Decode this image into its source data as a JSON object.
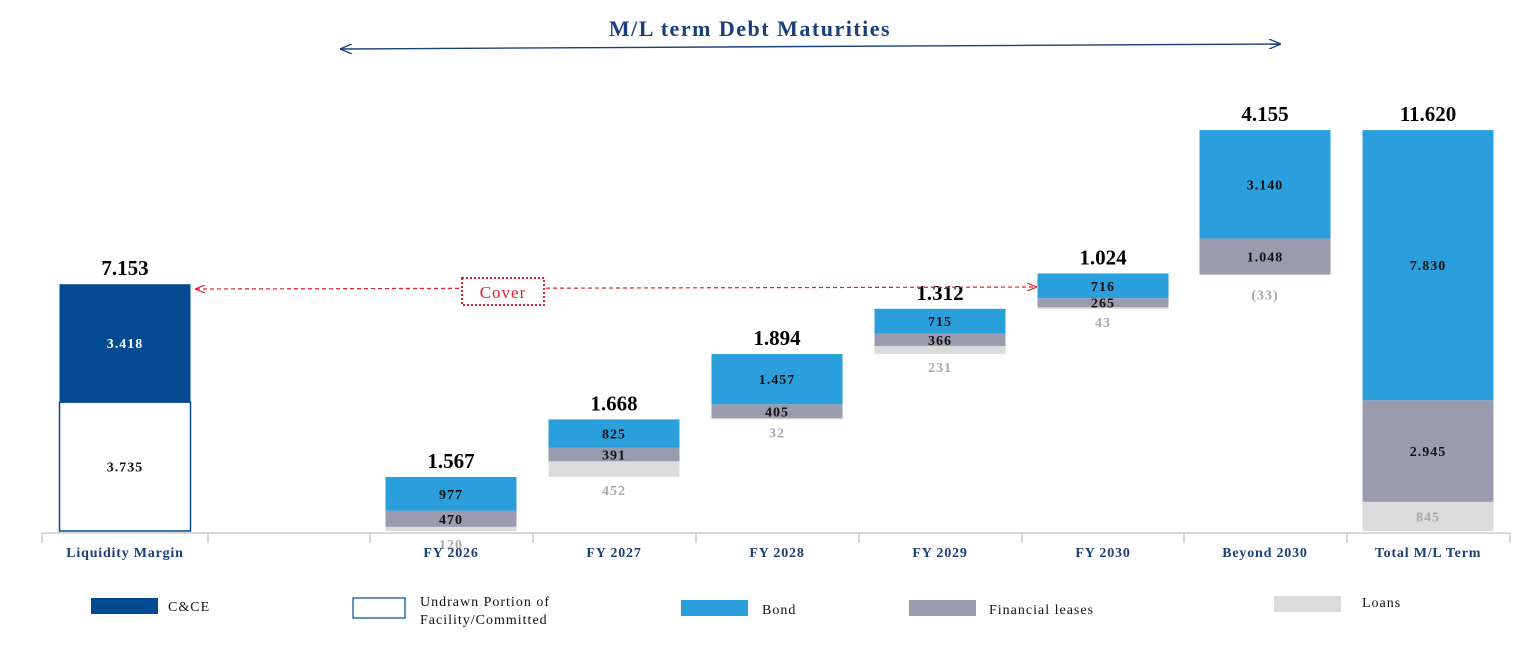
{
  "colors": {
    "cce": "#034a91",
    "bond": "#2a9fdb",
    "leases": "#9b9bb0",
    "loans": "#dcdcdc",
    "title": "#1a3f7a",
    "axis_label": "#1a3f7a",
    "cover": "#e0202d"
  },
  "header": {
    "title": "M/L term Debt Maturities"
  },
  "cover_label": "Cover",
  "chart_data": {
    "type": "waterfall-stacked-bar",
    "title": "M/L term Debt Maturities",
    "categories": [
      "Liquidity Margin",
      "FY 2026",
      "FY 2027",
      "FY 2028",
      "FY 2029",
      "FY 2030",
      "Beyond 2030",
      "Total M/L Term"
    ],
    "totals": [
      "7.153",
      "1.567",
      "1.668",
      "1.894",
      "1.312",
      "1.024",
      "4.155",
      "11.620"
    ],
    "series": [
      {
        "name": "C&CE",
        "color_key": "cce",
        "values": [
          3418,
          null,
          null,
          null,
          null,
          null,
          null,
          null
        ],
        "labels": [
          "3.418",
          "",
          "",
          "",
          "",
          "",
          "",
          ""
        ]
      },
      {
        "name": "Undrawn Portion of Facility/Committed",
        "color_key": "undrawn",
        "values": [
          3735,
          null,
          null,
          null,
          null,
          null,
          null,
          null
        ],
        "labels": [
          "3.735",
          "",
          "",
          "",
          "",
          "",
          "",
          ""
        ]
      },
      {
        "name": "Bond",
        "color_key": "bond",
        "values": [
          null,
          977,
          825,
          1457,
          715,
          716,
          3140,
          7830
        ],
        "labels": [
          "",
          "977",
          "825",
          "1.457",
          "715",
          "716",
          "3.140",
          "7.830"
        ]
      },
      {
        "name": "Financial leases",
        "color_key": "leases",
        "values": [
          null,
          470,
          391,
          405,
          366,
          265,
          1048,
          2945
        ],
        "labels": [
          "",
          "470",
          "391",
          "405",
          "366",
          "265",
          "1.048",
          "2.945"
        ]
      },
      {
        "name": "Loans",
        "color_key": "loans",
        "values": [
          null,
          120,
          452,
          32,
          231,
          43,
          -33,
          845
        ],
        "labels": [
          "",
          "120",
          "452",
          "32",
          "231",
          "43",
          "(33)",
          "845"
        ]
      }
    ],
    "legend": {
      "position": "bottom",
      "items": [
        {
          "label": "C&CE",
          "color_key": "cce"
        },
        {
          "label": "Undrawn Portion of Facility/Committed",
          "color_key": "undrawn"
        },
        {
          "label": "Bond",
          "color_key": "bond"
        },
        {
          "label": "Financial leases",
          "color_key": "leases"
        },
        {
          "label": "Loans",
          "color_key": "loans"
        }
      ]
    },
    "grid": false
  }
}
